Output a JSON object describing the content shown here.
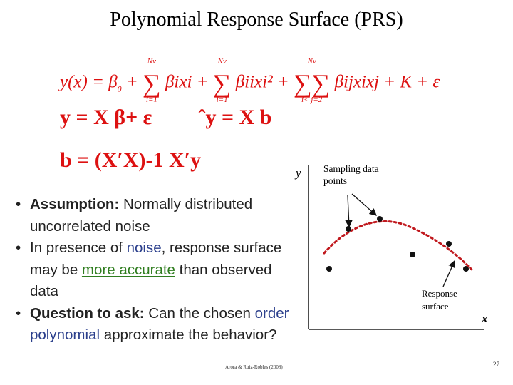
{
  "title": "Polynomial Response Surface (PRS)",
  "equations": {
    "eq1": {
      "lhs": "y(x) = β",
      "beta0_sub": "0",
      "plus": "+",
      "sum_top": "Nv",
      "sum1_bottom": "i=1",
      "term1": "βixi",
      "sum2_bottom": "i=1",
      "term2": "βiixi²",
      "sum3_bottom": "i< j=2",
      "term3": "βijxixj",
      "tail": "+ K + ε"
    },
    "eq2": {
      "left": "y = X β+ ε",
      "right": "ˆy = X b"
    },
    "eq3": "b = (X′X)-1 X′y"
  },
  "bullets": [
    {
      "bold": "Assumption:",
      "text": " Normally distributed uncorrelated noise"
    },
    {
      "pre": "In presence of ",
      "noise": "noise",
      "mid": ", response surface may be ",
      "accurate": "more accurate",
      "post": " than observed data"
    },
    {
      "bold": "Question to ask:",
      "text": " Can the chosen ",
      "order": "order polynomial",
      "post": " approximate the behavior?"
    }
  ],
  "citation": "Arora & Ruiz-Robles (2008)",
  "page_number": "27",
  "plot": {
    "y_label": "y",
    "x_label": "x",
    "sampling_label_line1": "Sampling data",
    "sampling_label_line2": "points",
    "response_label_line1": "Response",
    "response_label_line2": "surface",
    "curve_color": "#c0181d",
    "point_color": "#111111"
  }
}
